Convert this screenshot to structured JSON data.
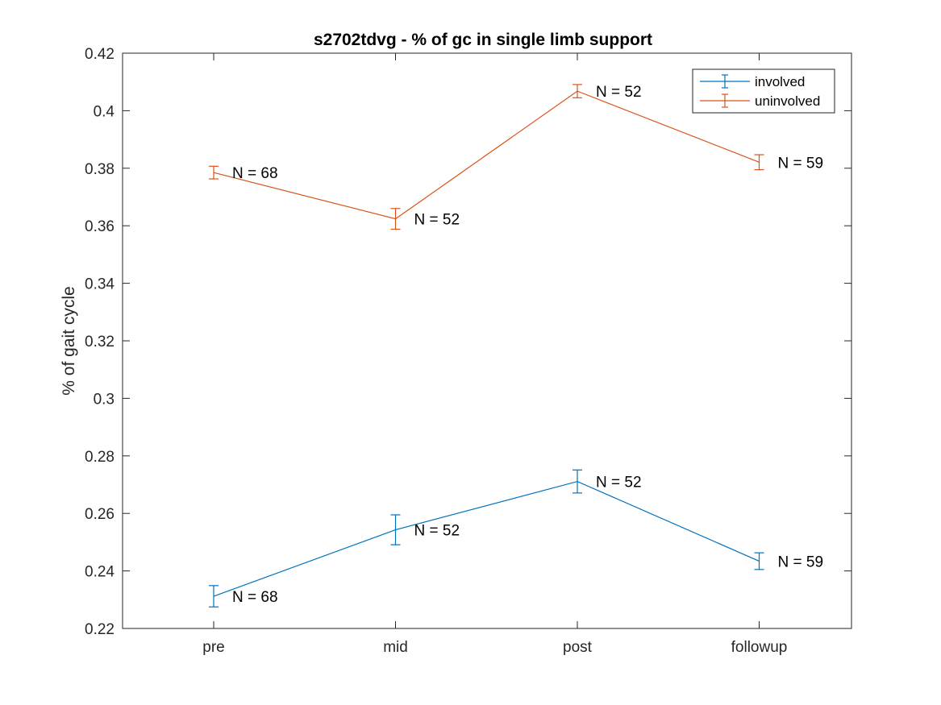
{
  "chart_data": {
    "type": "line",
    "title": "s2702tdvg - % of gc in single limb support",
    "xlabel": "",
    "ylabel": "% of gait cycle",
    "categories": [
      "pre",
      "mid",
      "post",
      "followup"
    ],
    "ylim": [
      0.22,
      0.42
    ],
    "yticks": [
      "0.22",
      "0.24",
      "0.26",
      "0.28",
      "0.3",
      "0.32",
      "0.34",
      "0.36",
      "0.38",
      "0.4",
      "0.42"
    ],
    "grid": false,
    "legend_position": "top-right",
    "series": [
      {
        "name": "involved",
        "color": "#0072BD",
        "values": [
          0.2312,
          0.2543,
          0.2711,
          0.2434
        ],
        "error": [
          0.0037,
          0.0052,
          0.004,
          0.0029
        ],
        "labels": [
          "N = 68",
          "N = 52",
          "N = 52",
          "N = 59"
        ]
      },
      {
        "name": "uninvolved",
        "color": "#D95319",
        "values": [
          0.3785,
          0.3624,
          0.4068,
          0.3821
        ],
        "error": [
          0.0022,
          0.0036,
          0.0023,
          0.0026
        ],
        "labels": [
          "N = 68",
          "N = 52",
          "N = 52",
          "N = 59"
        ]
      }
    ]
  }
}
